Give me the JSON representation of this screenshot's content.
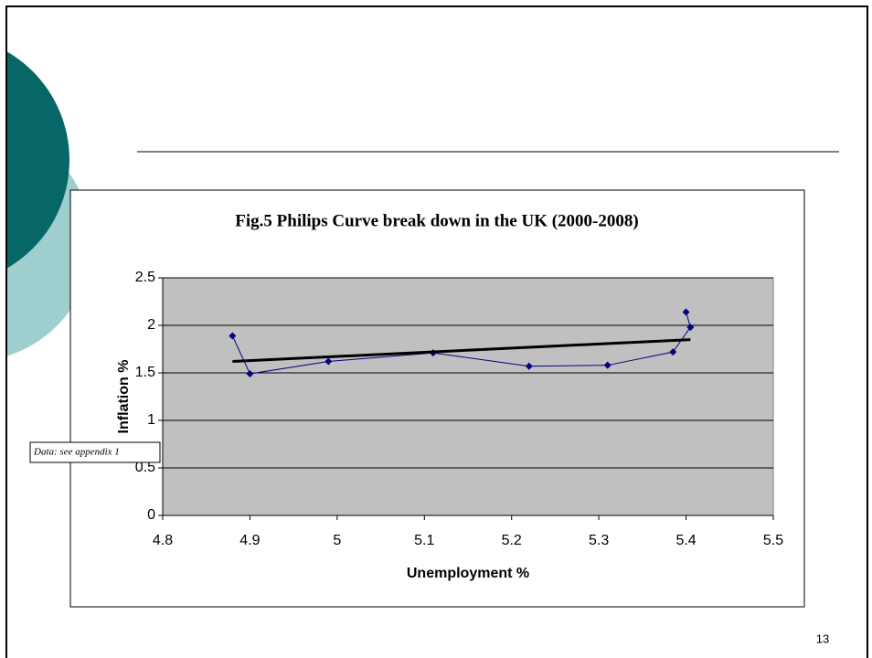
{
  "chart_data": {
    "type": "line",
    "title": "Fig.5 Philips Curve break down in the UK (2000-2008)",
    "x_label": "Unemployment %",
    "y_label": "Inflation %",
    "annotation": "Data: see appendix 1",
    "series": [
      {
        "color": "#000080",
        "x": [
          4.88,
          4.9,
          4.99,
          5.11,
          5.22,
          5.31,
          5.385,
          5.405,
          5.4
        ],
        "values": [
          1.89,
          1.49,
          1.62,
          1.71,
          1.57,
          1.58,
          1.72,
          1.98,
          2.14
        ]
      }
    ],
    "trendline": {
      "color": "#000000",
      "x": [
        4.88,
        5.405
      ],
      "values": [
        1.62,
        1.85
      ]
    },
    "xlim": [
      4.8,
      5.5
    ],
    "xticks": [
      4.8,
      4.9,
      5,
      5.1,
      5.2,
      5.3,
      5.4,
      5.5
    ],
    "ylim": [
      0,
      2.5
    ],
    "yticks": [
      0,
      0.5,
      1,
      1.5,
      2,
      2.5
    ],
    "grid": true,
    "plot_background": "#c0c0c0"
  },
  "page_number": "13"
}
